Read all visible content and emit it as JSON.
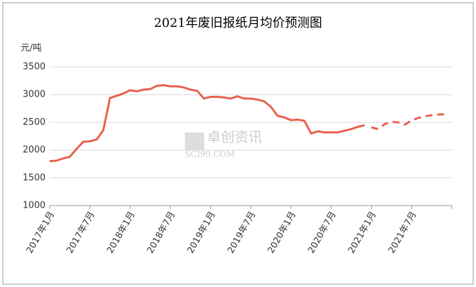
{
  "chart_data": {
    "type": "line",
    "title": "2021年废旧报纸月均价预测图",
    "y_label": "元/吨",
    "watermark": [
      "卓创资讯",
      "SCI99.COM"
    ],
    "categories": [
      "2017年1月",
      null,
      null,
      null,
      null,
      null,
      "2017年7月",
      null,
      null,
      null,
      null,
      null,
      "2018年1月",
      null,
      null,
      null,
      null,
      null,
      "2018年7月",
      null,
      null,
      null,
      null,
      null,
      "2019年1月",
      null,
      null,
      null,
      null,
      null,
      "2019年7月",
      null,
      null,
      null,
      null,
      null,
      "2020年1月",
      null,
      null,
      null,
      null,
      null,
      "2020年7月",
      null,
      null,
      null,
      null,
      null,
      "2021年1月",
      null,
      null,
      null,
      null,
      null,
      "2021年7月",
      null,
      null,
      null,
      null,
      null
    ],
    "series": [
      {
        "color": "#e8604c",
        "dash": false,
        "values": [
          1800,
          1810,
          1850,
          1880,
          2020,
          2150,
          2160,
          2190,
          2360,
          2940,
          2980,
          3020,
          3080,
          3060,
          3090,
          3100,
          3160,
          3170,
          3150,
          3150,
          3130,
          3090,
          3070,
          2930,
          2960,
          2960,
          2950,
          2930,
          2970,
          2930,
          2930,
          2910,
          2880,
          2780,
          2620,
          2590,
          2540,
          2550,
          2530,
          2300,
          2340,
          2320,
          2320,
          2320,
          2350,
          2380,
          2420,
          2450,
          null,
          null,
          null,
          null,
          null,
          null,
          null,
          null,
          null,
          null,
          null,
          null
        ]
      },
      {
        "color": "#e8604c",
        "dash": true,
        "values": [
          null,
          null,
          null,
          null,
          null,
          null,
          null,
          null,
          null,
          null,
          null,
          null,
          null,
          null,
          null,
          null,
          null,
          null,
          null,
          null,
          null,
          null,
          null,
          null,
          null,
          null,
          null,
          null,
          null,
          null,
          null,
          null,
          null,
          null,
          null,
          null,
          null,
          null,
          null,
          null,
          null,
          null,
          null,
          null,
          null,
          null,
          null,
          null,
          2410,
          2380,
          2470,
          2510,
          2500,
          2460,
          2540,
          2580,
          2610,
          2630,
          2640,
          2650
        ]
      }
    ],
    "ylim": [
      1000,
      3500
    ],
    "yticks": [
      1000,
      1500,
      2000,
      2500,
      3000,
      3500
    ],
    "grid": true
  }
}
